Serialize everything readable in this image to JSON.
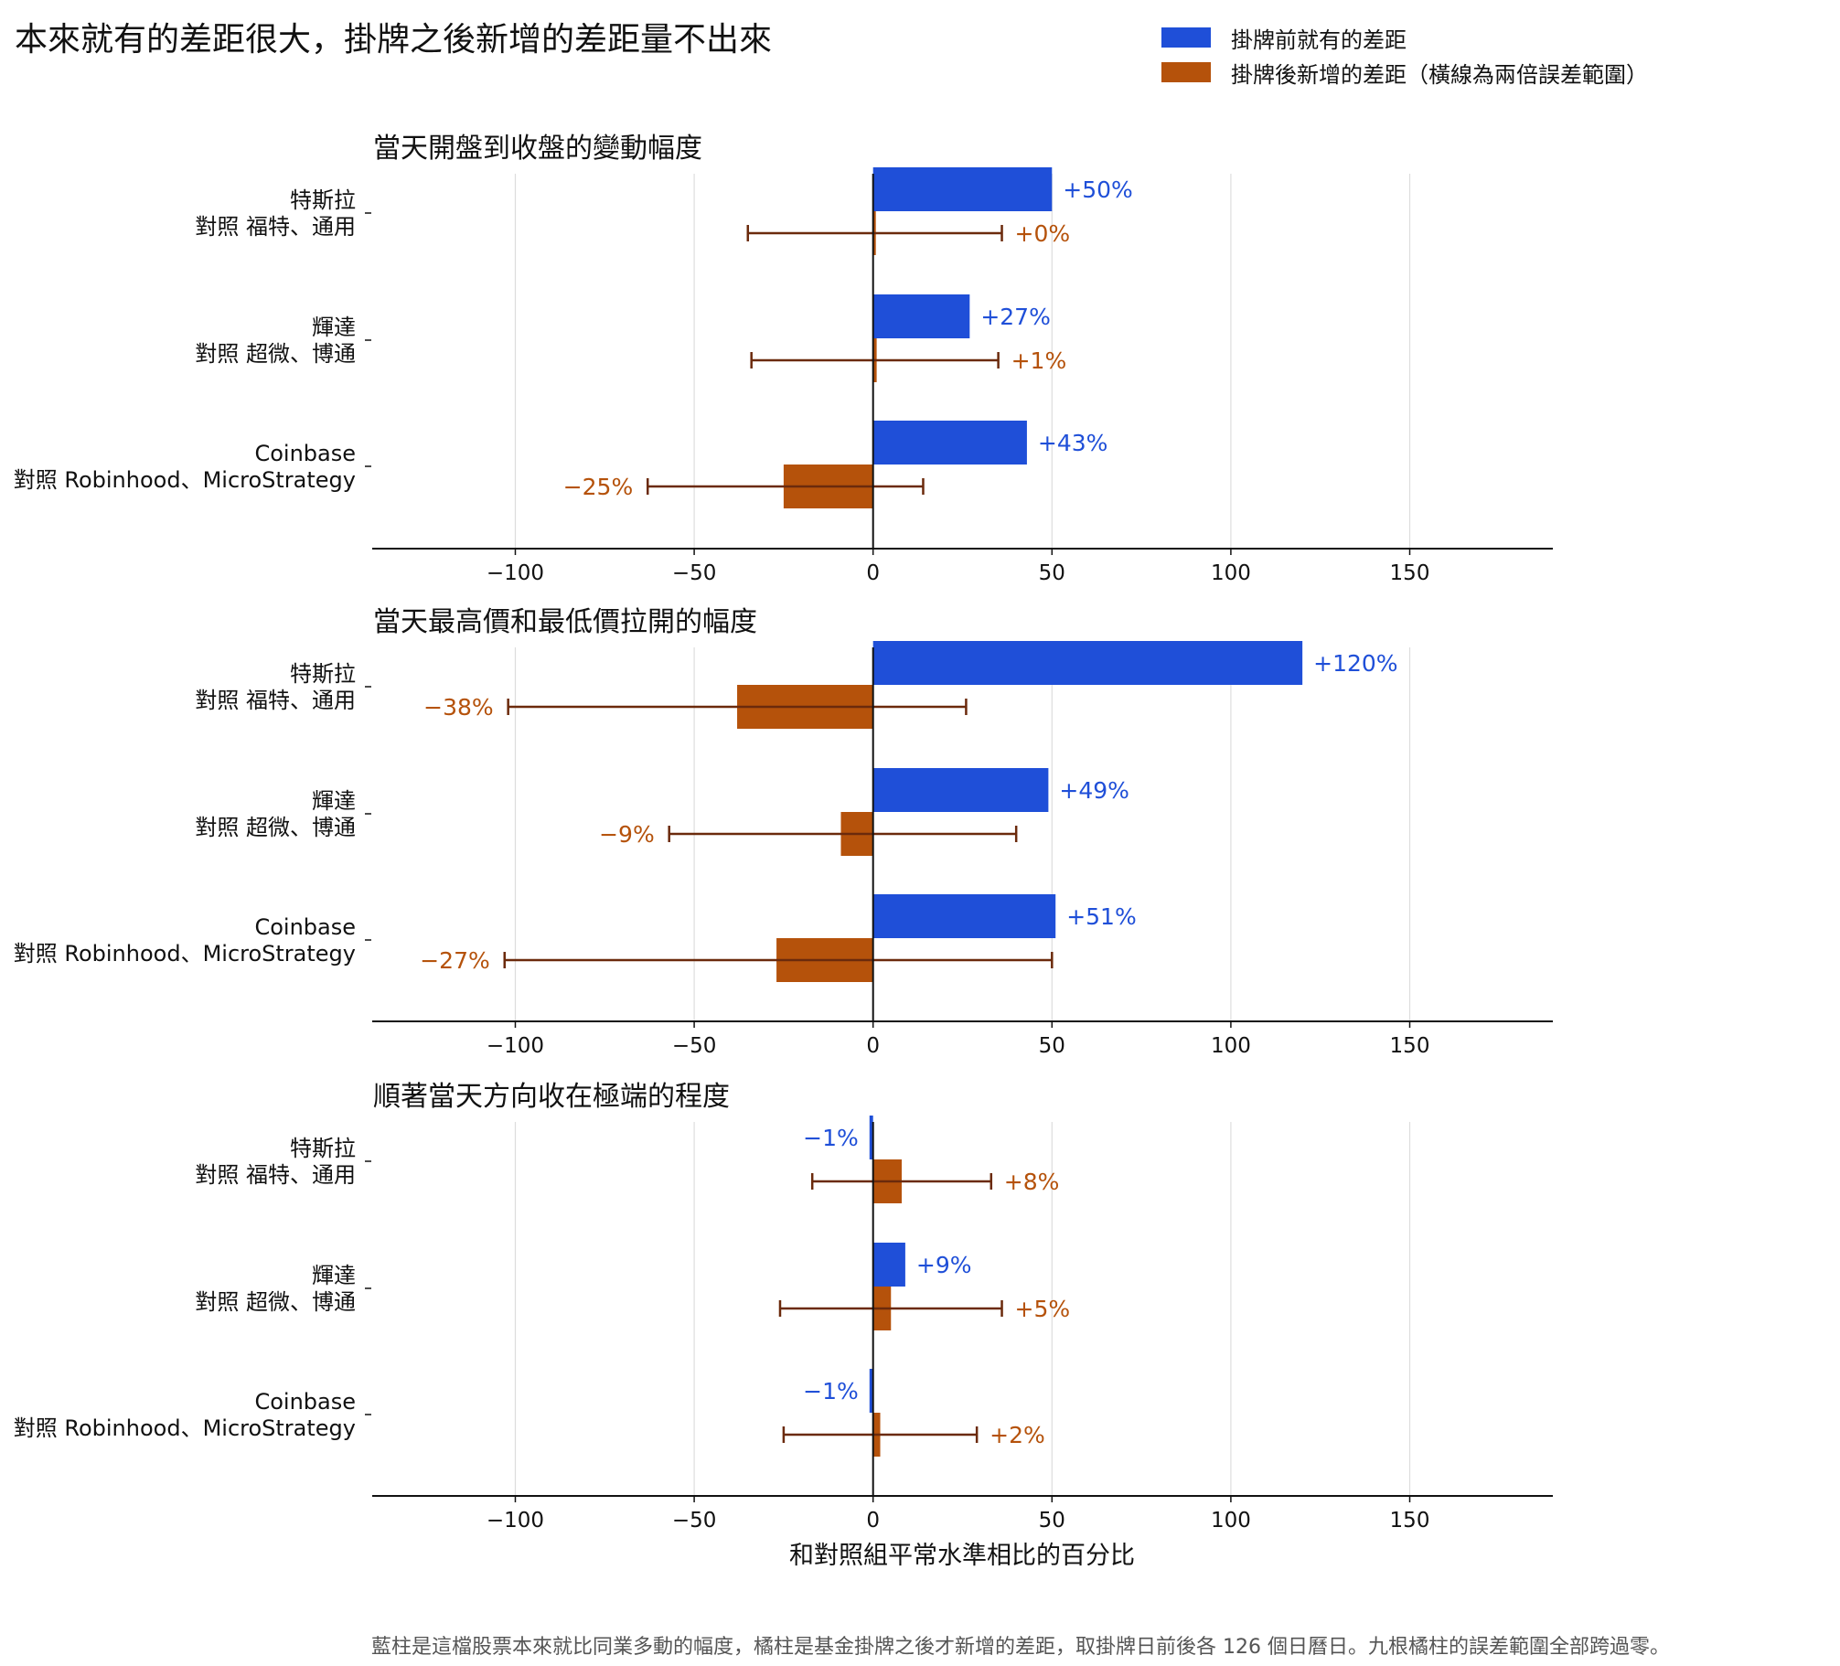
{
  "title": "本來就有的差距很大，掛牌之後新增的差距量不出來",
  "legend": {
    "pre_label": "掛牌前就有的差距",
    "post_label": "掛牌後新增的差距（橫線為兩倍誤差範圍）"
  },
  "colors": {
    "pre": "#1f4fd8",
    "post": "#b5520b",
    "errorbar": "#6b2a0c",
    "grid": "#dddddd"
  },
  "footnote": "藍柱是這檔股票本來就比同業多動的幅度，橘柱是基金掛牌之後才新增的差距，取掛牌日前後各 126 個日曆日。九根橘柱的誤差範圍全部跨過零。",
  "chart_data": [
    {
      "type": "bar",
      "orientation": "horizontal",
      "title": "當天開盤到收盤的變動幅度",
      "categories": [
        [
          "特斯拉",
          "對照 福特、通用"
        ],
        [
          "輝達",
          "對照 超微、博通"
        ],
        [
          "Coinbase",
          "對照 Robinhood、MicroStrategy"
        ]
      ],
      "series": [
        {
          "name": "掛牌前就有的差距",
          "values": [
            50,
            27,
            43
          ],
          "labels": [
            "+50%",
            "+27%",
            "+43%"
          ]
        },
        {
          "name": "掛牌後新增的差距（橫線為兩倍誤差範圍）",
          "values": [
            0,
            1,
            -25
          ],
          "labels": [
            "+0%",
            "+1%",
            "−25%"
          ],
          "error_low": [
            -35,
            -34,
            -63
          ],
          "error_high": [
            36,
            35,
            14
          ]
        }
      ],
      "xlim": [
        -140,
        190
      ],
      "xticks": [
        -100,
        -50,
        0,
        50,
        100,
        150
      ],
      "xticklabels": [
        "−100",
        "−50",
        "0",
        "50",
        "100",
        "150"
      ],
      "xlabel": "",
      "grid": "x"
    },
    {
      "type": "bar",
      "orientation": "horizontal",
      "title": "當天最高價和最低價拉開的幅度",
      "categories": [
        [
          "特斯拉",
          "對照 福特、通用"
        ],
        [
          "輝達",
          "對照 超微、博通"
        ],
        [
          "Coinbase",
          "對照 Robinhood、MicroStrategy"
        ]
      ],
      "series": [
        {
          "name": "掛牌前就有的差距",
          "values": [
            120,
            49,
            51
          ],
          "labels": [
            "+120%",
            "+49%",
            "+51%"
          ]
        },
        {
          "name": "掛牌後新增的差距（橫線為兩倍誤差範圍）",
          "values": [
            -38,
            -9,
            -27
          ],
          "labels": [
            "−38%",
            "−9%",
            "−27%"
          ],
          "error_low": [
            -102,
            -57,
            -103
          ],
          "error_high": [
            26,
            40,
            50
          ]
        }
      ],
      "xlim": [
        -140,
        190
      ],
      "xticks": [
        -100,
        -50,
        0,
        50,
        100,
        150
      ],
      "xticklabels": [
        "−100",
        "−50",
        "0",
        "50",
        "100",
        "150"
      ],
      "xlabel": "",
      "grid": "x"
    },
    {
      "type": "bar",
      "orientation": "horizontal",
      "title": "順著當天方向收在極端的程度",
      "categories": [
        [
          "特斯拉",
          "對照 福特、通用"
        ],
        [
          "輝達",
          "對照 超微、博通"
        ],
        [
          "Coinbase",
          "對照 Robinhood、MicroStrategy"
        ]
      ],
      "series": [
        {
          "name": "掛牌前就有的差距",
          "values": [
            -1,
            9,
            -1
          ],
          "labels": [
            "−1%",
            "+9%",
            "−1%"
          ]
        },
        {
          "name": "掛牌後新增的差距（橫線為兩倍誤差範圍）",
          "values": [
            8,
            5,
            2
          ],
          "labels": [
            "+8%",
            "+5%",
            "+2%"
          ],
          "error_low": [
            -17,
            -26,
            -25
          ],
          "error_high": [
            33,
            36,
            29
          ]
        }
      ],
      "xlim": [
        -140,
        190
      ],
      "xticks": [
        -100,
        -50,
        0,
        50,
        100,
        150
      ],
      "xticklabels": [
        "−100",
        "−50",
        "0",
        "50",
        "100",
        "150"
      ],
      "xlabel": "和對照組平常水準相比的百分比",
      "grid": "x"
    }
  ]
}
